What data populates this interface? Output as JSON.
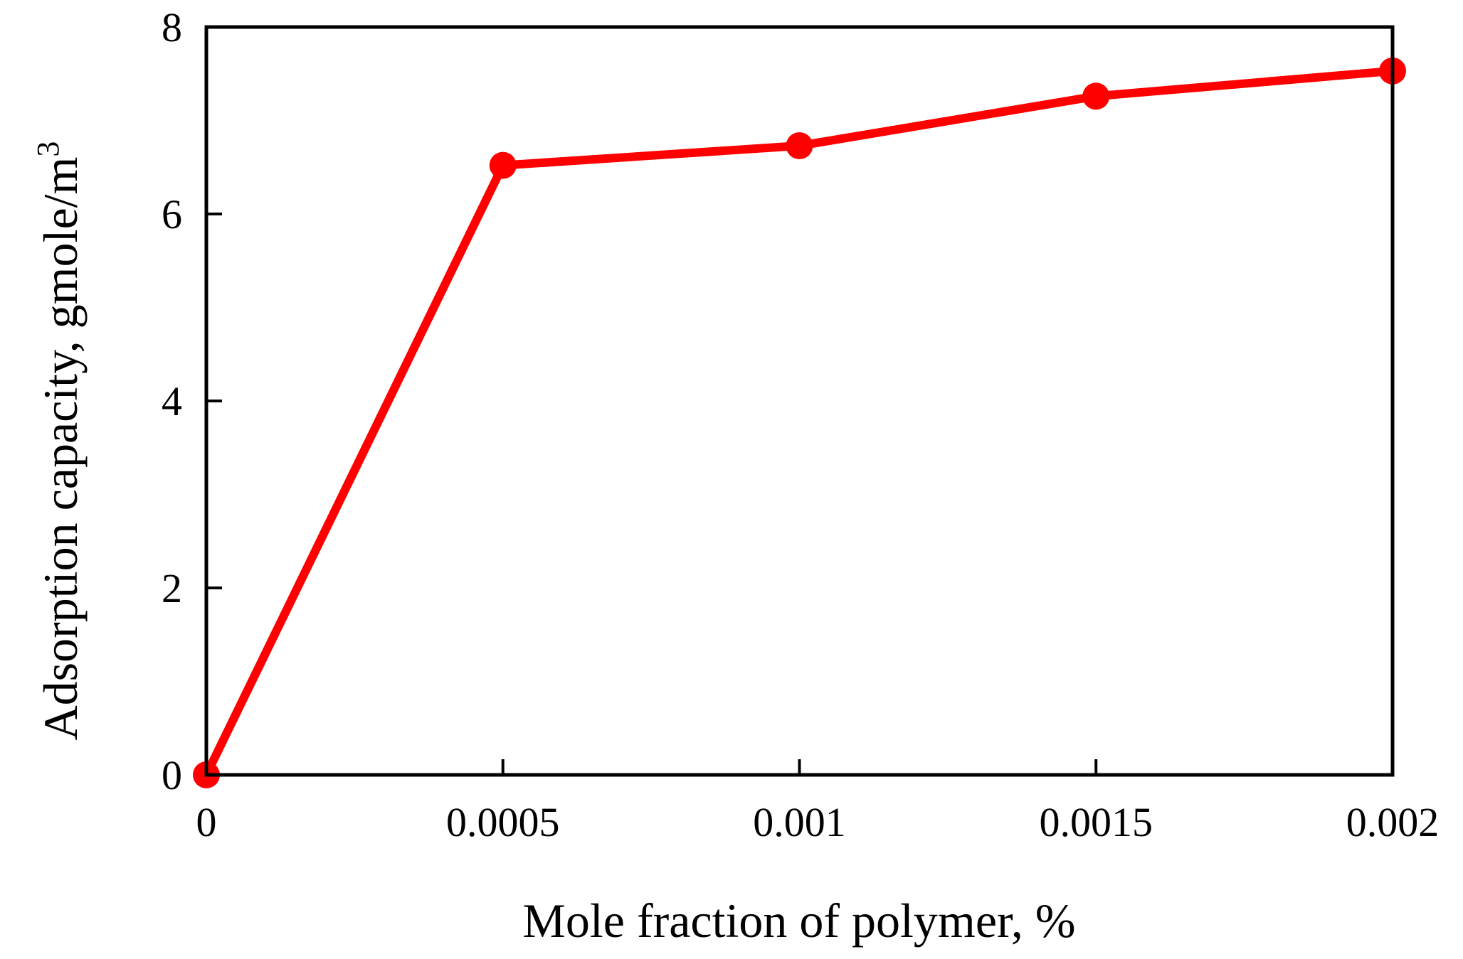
{
  "chart_data": {
    "type": "line",
    "xlabel": "Mole fraction of polymer, %",
    "ylabel_main": "Adsorption capacity, gmole/m",
    "ylabel_sup": "3",
    "x": [
      0,
      0.0005,
      0.001,
      0.0015,
      0.002
    ],
    "series": [
      {
        "values": [
          0,
          6.52,
          6.73,
          7.26,
          7.53
        ],
        "color": "#ff0000"
      }
    ],
    "xlim": [
      0,
      0.002
    ],
    "ylim": [
      0,
      8
    ],
    "xticks": [
      "0",
      "0.0005",
      "0.001",
      "0.0015",
      "0.002"
    ],
    "yticks": [
      "0",
      "2",
      "4",
      "6",
      "8"
    ],
    "grid": false
  }
}
